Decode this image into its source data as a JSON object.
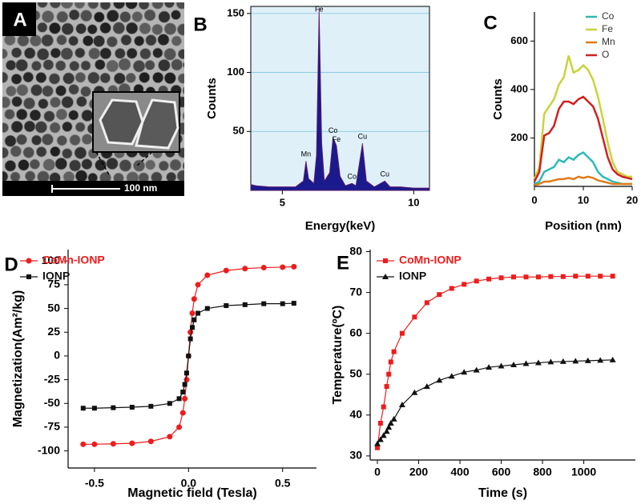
{
  "chart_data": [
    {
      "type": "image",
      "panel": "A",
      "scale_bar": "100 nm"
    },
    {
      "type": "area",
      "panel": "B",
      "x_label": "Energy(keV)",
      "y_label": "Counts",
      "color": "#1a1a8c",
      "background": "#dff0f8",
      "grid": true,
      "x": [
        3.8,
        4.0,
        4.5,
        5.0,
        5.5,
        5.8,
        5.9,
        6.0,
        6.2,
        6.3,
        6.4,
        6.5,
        6.6,
        6.8,
        6.93,
        7.06,
        7.2,
        7.4,
        7.65,
        7.8,
        8.05,
        8.2,
        8.5,
        8.9,
        9.1,
        9.5,
        10.0,
        10.6
      ],
      "values": [
        5,
        4,
        3,
        3,
        3,
        8,
        25,
        10,
        6,
        30,
        155,
        40,
        8,
        15,
        45,
        38,
        12,
        4,
        6,
        4,
        40,
        8,
        3,
        8,
        3,
        3,
        2,
        2
      ],
      "peak_labels": [
        {
          "text": "Mn",
          "x": 5.9
        },
        {
          "text": "Fe",
          "x": 6.4
        },
        {
          "text": "Co",
          "x": 6.93
        },
        {
          "text": "Fe",
          "x": 7.06
        },
        {
          "text": "Co",
          "x": 7.65
        },
        {
          "text": "Cu",
          "x": 8.05
        },
        {
          "text": "Cu",
          "x": 8.9
        }
      ],
      "xlim": [
        3.8,
        10.6
      ],
      "ylim": [
        0,
        156
      ],
      "xticks": [
        5,
        10
      ],
      "yticks": [
        50,
        100,
        150
      ]
    },
    {
      "type": "line",
      "panel": "C",
      "x_label": "Position (nm)",
      "y_label": "Counts",
      "legend": "top-right",
      "x": [
        0,
        1,
        2,
        3,
        4,
        5,
        6,
        7,
        8,
        9,
        10,
        11,
        12,
        13,
        14,
        15,
        16,
        17,
        18,
        19,
        20
      ],
      "series": [
        {
          "name": "Co",
          "color": "#2bbbb5",
          "values": [
            10,
            20,
            60,
            70,
            80,
            110,
            100,
            120,
            110,
            130,
            140,
            120,
            100,
            60,
            40,
            30,
            20,
            15,
            10,
            10,
            10
          ]
        },
        {
          "name": "Fe",
          "color": "#c8d43a",
          "values": [
            30,
            80,
            300,
            330,
            360,
            420,
            450,
            540,
            470,
            480,
            500,
            480,
            440,
            370,
            280,
            180,
            100,
            60,
            50,
            40,
            40
          ]
        },
        {
          "name": "Mn",
          "color": "#e07b1a",
          "values": [
            5,
            10,
            20,
            20,
            25,
            30,
            30,
            35,
            30,
            40,
            35,
            40,
            35,
            25,
            20,
            15,
            10,
            10,
            10,
            10,
            10
          ]
        },
        {
          "name": "O",
          "color": "#d32020",
          "values": [
            20,
            60,
            210,
            220,
            250,
            320,
            350,
            350,
            340,
            360,
            370,
            350,
            330,
            280,
            200,
            120,
            70,
            50,
            40,
            35,
            30
          ]
        }
      ],
      "xlim": [
        0,
        20
      ],
      "ylim": [
        0,
        720
      ],
      "xticks": [
        0,
        10,
        20
      ],
      "yticks": [
        200,
        400,
        600
      ]
    },
    {
      "type": "scatter",
      "panel": "D",
      "x_label": "Magnetic field (Tesla)",
      "y_label": "Magnetization(Am²/kg)",
      "legend": "top-left",
      "x": [
        -0.56,
        -0.5,
        -0.4,
        -0.3,
        -0.2,
        -0.1,
        -0.05,
        -0.03,
        -0.02,
        -0.01,
        0,
        0.01,
        0.02,
        0.03,
        0.05,
        0.1,
        0.2,
        0.3,
        0.4,
        0.5,
        0.56
      ],
      "series": [
        {
          "name": "CoMn-IONP",
          "color": "#ee1c1c",
          "marker": "circle",
          "values": [
            -93,
            -93,
            -92.5,
            -92,
            -90,
            -85,
            -75,
            -60,
            -45,
            -25,
            0,
            25,
            45,
            60,
            75,
            85,
            90,
            92,
            93,
            93.5,
            94
          ]
        },
        {
          "name": "IONP",
          "color": "#111111",
          "marker": "square",
          "values": [
            -55,
            -55,
            -54.5,
            -54,
            -53,
            -50,
            -45,
            -38,
            -30,
            -18,
            0,
            18,
            30,
            38,
            45,
            50,
            53,
            54,
            55,
            55,
            55.5
          ]
        }
      ],
      "xlim": [
        -0.64,
        0.68
      ],
      "ylim": [
        -118,
        112
      ],
      "xticks": [
        -0.5,
        {
          "value": 0,
          "label": "0.0"
        },
        0.5
      ],
      "yticks": [
        -100,
        -75,
        -50,
        -25,
        0,
        25,
        50,
        75,
        100
      ]
    },
    {
      "type": "scatter",
      "panel": "E",
      "x_label": "Time (s)",
      "y_label": "Temperature(ºC)",
      "legend": "top-left",
      "x": [
        0,
        15,
        30,
        45,
        55,
        65,
        80,
        120,
        180,
        240,
        300,
        360,
        420,
        480,
        540,
        600,
        660,
        720,
        780,
        840,
        900,
        960,
        1020,
        1080,
        1140
      ],
      "series": [
        {
          "name": "CoMn-IONP",
          "color": "#ee1c1c",
          "marker": "square",
          "values": [
            32,
            38,
            42,
            47,
            50,
            53,
            55.5,
            60,
            64,
            67.5,
            69.5,
            71,
            72,
            72.8,
            73.3,
            73.6,
            73.8,
            73.8,
            73.8,
            73.9,
            73.9,
            74,
            74,
            74,
            74
          ]
        },
        {
          "name": "IONP",
          "color": "#111111",
          "marker": "triangle",
          "values": [
            33,
            34,
            35,
            36,
            37,
            38,
            39,
            42.5,
            45.5,
            47,
            48.5,
            49.5,
            50.5,
            51,
            51.7,
            52,
            52.3,
            52.6,
            52.8,
            53,
            53.1,
            53.2,
            53.3,
            53.4,
            53.5
          ]
        }
      ],
      "xlim": [
        -35,
        1250
      ],
      "ylim": [
        29,
        80.5
      ],
      "xticks": [
        0,
        200,
        400,
        600,
        800,
        1000
      ],
      "yticks": [
        30,
        40,
        50,
        60,
        70,
        80
      ]
    }
  ]
}
